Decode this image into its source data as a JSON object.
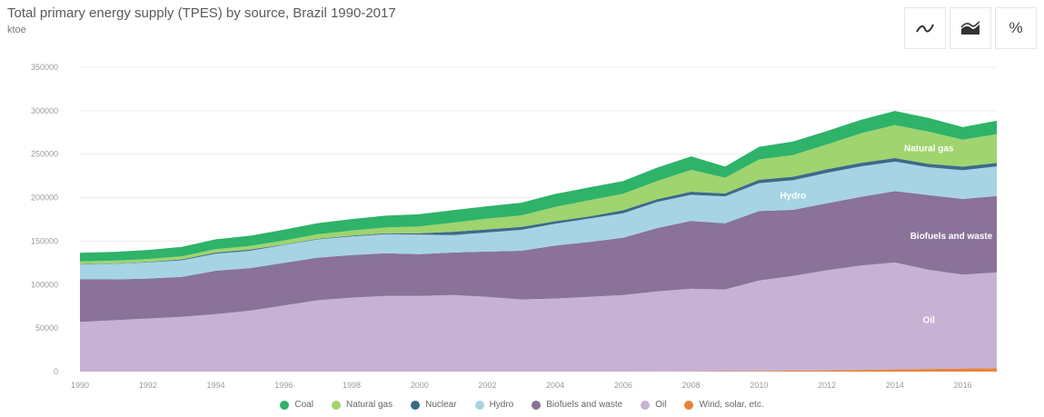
{
  "header": {
    "title": "Total primary energy supply (TPES) by source, Brazil 1990-2017",
    "unit": "ktoe"
  },
  "toolbar": {
    "percent_label": "%"
  },
  "chart_data": {
    "type": "area",
    "stacked": true,
    "title": "Total primary energy supply (TPES) by source, Brazil 1990-2017",
    "ylabel": "ktoe",
    "xlim": [
      1990,
      2017
    ],
    "ylim": [
      0,
      350000
    ],
    "yticks": [
      0,
      50000,
      100000,
      150000,
      200000,
      250000,
      300000,
      350000
    ],
    "ytick_labels": [
      "0",
      "50000",
      "100000",
      "150000",
      "200000",
      "250000",
      "300000",
      "350000"
    ],
    "xticks": [
      1990,
      1992,
      1994,
      1996,
      1998,
      2000,
      2002,
      2004,
      2006,
      2008,
      2010,
      2012,
      2014,
      2016
    ],
    "grid": true,
    "legend_position": "bottom",
    "x": [
      1990,
      1991,
      1992,
      1993,
      1994,
      1995,
      1996,
      1997,
      1998,
      1999,
      2000,
      2001,
      2002,
      2003,
      2004,
      2005,
      2006,
      2007,
      2008,
      2009,
      2010,
      2011,
      2012,
      2013,
      2014,
      2015,
      2016,
      2017
    ],
    "series": [
      {
        "name": "Wind, solar, etc.",
        "color": "#e8833a",
        "values": [
          0,
          0,
          0,
          0,
          0,
          0,
          0,
          0,
          0,
          0,
          0,
          0,
          0,
          0,
          0,
          0,
          0,
          100,
          300,
          500,
          700,
          1000,
          1500,
          2000,
          2500,
          3000,
          3500,
          4000
        ]
      },
      {
        "name": "Oil",
        "color": "#c7b2d4",
        "values": [
          57000,
          59000,
          61000,
          63000,
          66000,
          70000,
          76000,
          82000,
          85000,
          87000,
          87000,
          88000,
          86000,
          83000,
          84000,
          86000,
          88000,
          92000,
          95000,
          94000,
          104000,
          109000,
          115000,
          120000,
          123000,
          114000,
          108000,
          110000
        ]
      },
      {
        "name": "Biofuels and waste",
        "color": "#8a7299",
        "values": [
          49000,
          47000,
          46000,
          46000,
          50000,
          49000,
          49000,
          49000,
          49000,
          49000,
          48000,
          49000,
          52000,
          56000,
          61000,
          63000,
          66000,
          73000,
          78000,
          76000,
          80000,
          76000,
          77000,
          79000,
          82000,
          86000,
          87000,
          88000
        ]
      },
      {
        "name": "Hydro",
        "color": "#a6d4e4",
        "values": [
          17000,
          18000,
          18500,
          19000,
          19500,
          20000,
          20500,
          21000,
          21500,
          22000,
          22500,
          20000,
          22000,
          24000,
          25000,
          27000,
          28000,
          30000,
          30000,
          31000,
          32000,
          34000,
          35000,
          35000,
          34000,
          32000,
          33000,
          34000
        ]
      },
      {
        "name": "Nuclear",
        "color": "#3d6a8a",
        "values": [
          600,
          400,
          500,
          1000,
          1400,
          1300,
          600,
          600,
          800,
          1100,
          1500,
          3800,
          3500,
          3300,
          2900,
          2500,
          3500,
          3200,
          3600,
          3400,
          3800,
          4100,
          4200,
          4000,
          4000,
          3800,
          4200,
          4000
        ]
      },
      {
        "name": "Natural gas",
        "color": "#9fd46e",
        "values": [
          3000,
          3200,
          3400,
          3600,
          3900,
          4100,
          4700,
          5300,
          5900,
          6600,
          8000,
          10500,
          12400,
          13300,
          16500,
          18500,
          19100,
          20800,
          25000,
          18100,
          23500,
          25000,
          28500,
          34000,
          38000,
          37000,
          31000,
          33000
        ]
      },
      {
        "name": "Coal",
        "color": "#2eb369",
        "values": [
          10000,
          10000,
          10500,
          10800,
          11300,
          11800,
          12300,
          12800,
          13200,
          13600,
          14000,
          14500,
          14200,
          14600,
          15000,
          14800,
          14500,
          15500,
          15600,
          12700,
          14500,
          15500,
          15400,
          15500,
          16200,
          15800,
          14500,
          15500
        ]
      }
    ],
    "in_chart_labels": [
      "Natural gas",
      "Hydro",
      "Biofuels and waste",
      "Oil"
    ]
  },
  "legend": [
    {
      "label": "Coal",
      "color": "#2eb369"
    },
    {
      "label": "Natural gas",
      "color": "#9fd46e"
    },
    {
      "label": "Nuclear",
      "color": "#3d6a8a"
    },
    {
      "label": "Hydro",
      "color": "#a6d4e4"
    },
    {
      "label": "Biofuels and waste",
      "color": "#8a7299"
    },
    {
      "label": "Oil",
      "color": "#c7b2d4"
    },
    {
      "label": "Wind, solar, etc.",
      "color": "#e8833a"
    }
  ]
}
